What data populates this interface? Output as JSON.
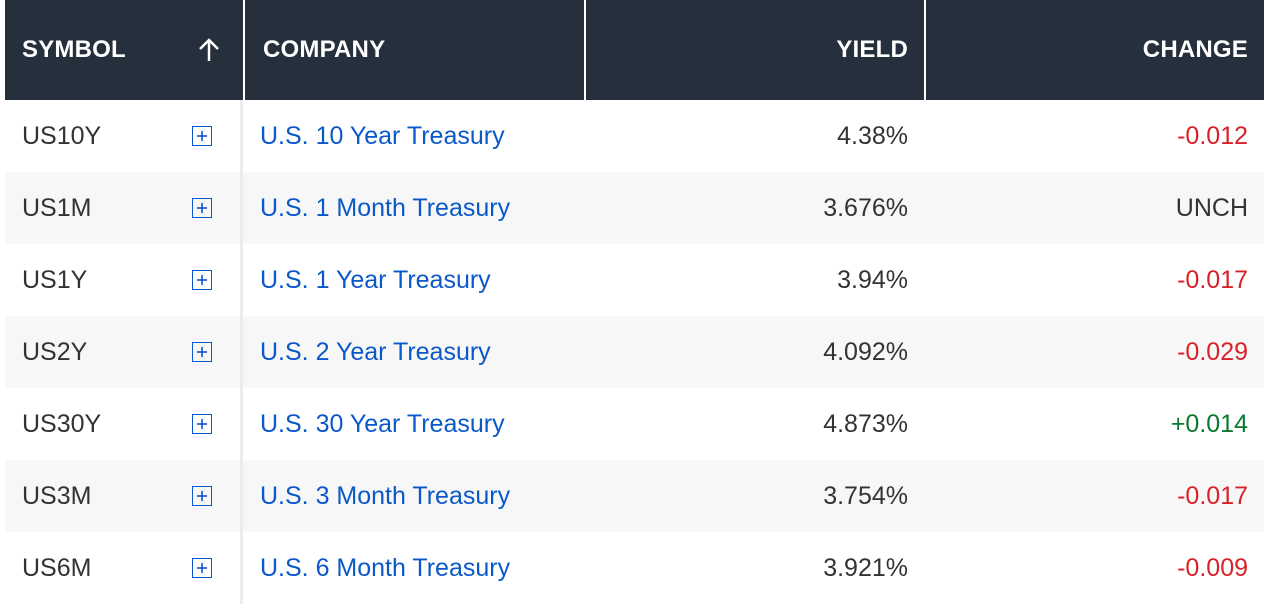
{
  "header": {
    "symbol": "SYMBOL",
    "company": "COMPANY",
    "yield": "YIELD",
    "change": "CHANGE",
    "sort_icon": "arrow-up-icon"
  },
  "colors": {
    "header_bg": "#262f3c",
    "link": "#0a58c9",
    "negative": "#d6232a",
    "positive": "#0b7a2e"
  },
  "rows": [
    {
      "symbol": "US10Y",
      "company": "U.S. 10 Year Treasury",
      "yield": "4.38%",
      "change": "-0.012",
      "direction": "neg"
    },
    {
      "symbol": "US1M",
      "company": "U.S. 1 Month Treasury",
      "yield": "3.676%",
      "change": "UNCH",
      "direction": "unch"
    },
    {
      "symbol": "US1Y",
      "company": "U.S. 1 Year Treasury",
      "yield": "3.94%",
      "change": "-0.017",
      "direction": "neg"
    },
    {
      "symbol": "US2Y",
      "company": "U.S. 2 Year Treasury",
      "yield": "4.092%",
      "change": "-0.029",
      "direction": "neg"
    },
    {
      "symbol": "US30Y",
      "company": "U.S. 30 Year Treasury",
      "yield": "4.873%",
      "change": "+0.014",
      "direction": "pos"
    },
    {
      "symbol": "US3M",
      "company": "U.S. 3 Month Treasury",
      "yield": "3.754%",
      "change": "-0.017",
      "direction": "neg"
    },
    {
      "symbol": "US6M",
      "company": "U.S. 6 Month Treasury",
      "yield": "3.921%",
      "change": "-0.009",
      "direction": "neg"
    }
  ]
}
